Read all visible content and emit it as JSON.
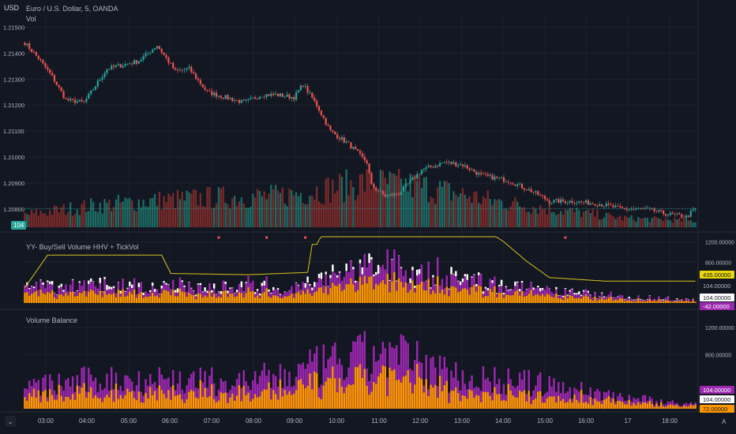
{
  "header": {
    "currency": "USD",
    "symbol_line": "Euro / U.S. Dollar, 5, OANDA",
    "vol_label": "Vol",
    "vol_badge": "104"
  },
  "colors": {
    "background": "#131722",
    "grid": "#1e222d",
    "up": "#26a69a",
    "down": "#ef5350",
    "vol_up": "#1d6b63",
    "vol_down": "#7a2a2a",
    "purple": "#9c27b0",
    "orange": "#ff9800",
    "white": "#ffffff",
    "hhv_line": "#d8c41a",
    "price_line": "#26a69a"
  },
  "chart_data": [
    {
      "type": "candlestick",
      "name": "price",
      "y_ticks": [
        "1.21500",
        "1.21400",
        "1.21300",
        "1.21200",
        "1.21100",
        "1.21000",
        "1.20900",
        "1.20800"
      ],
      "ylim": [
        1.2073,
        1.2155
      ],
      "x_ticks": [
        "03:00",
        "04:00",
        "05:00",
        "06:00",
        "07:00",
        "08:00",
        "09:00",
        "10:00",
        "11:00",
        "12:00",
        "13:00",
        "14:00",
        "15:00",
        "16:00",
        "17",
        "18:00"
      ],
      "price_anchors": [
        [
          0,
          1.2144
        ],
        [
          6,
          1.2138
        ],
        [
          12,
          1.2131
        ],
        [
          18,
          1.2122
        ],
        [
          26,
          1.2121
        ],
        [
          36,
          1.2134
        ],
        [
          50,
          1.2137
        ],
        [
          58,
          1.2143
        ],
        [
          66,
          1.2133
        ],
        [
          72,
          1.2134
        ],
        [
          80,
          1.2125
        ],
        [
          88,
          1.2123
        ],
        [
          96,
          1.2121
        ],
        [
          104,
          1.2124
        ],
        [
          110,
          1.2124
        ],
        [
          118,
          1.2123
        ],
        [
          122,
          1.2128
        ],
        [
          128,
          1.212
        ],
        [
          134,
          1.211
        ],
        [
          142,
          1.2105
        ],
        [
          150,
          1.2098
        ],
        [
          152,
          1.2089
        ],
        [
          158,
          1.2085
        ],
        [
          164,
          1.2086
        ],
        [
          174,
          1.2095
        ],
        [
          184,
          1.2098
        ],
        [
          192,
          1.2097
        ],
        [
          200,
          1.2093
        ],
        [
          212,
          1.2091
        ],
        [
          222,
          1.2087
        ],
        [
          230,
          1.2083
        ],
        [
          240,
          1.2083
        ],
        [
          252,
          1.2082
        ],
        [
          262,
          1.208
        ],
        [
          272,
          1.208
        ],
        [
          282,
          1.2078
        ],
        [
          290,
          1.2077
        ],
        [
          294,
          1.208
        ]
      ],
      "volume": {
        "ylim": [
          0,
          120
        ],
        "anchors": [
          [
            0,
            16
          ],
          [
            30,
            28
          ],
          [
            55,
            34
          ],
          [
            80,
            38
          ],
          [
            110,
            40
          ],
          [
            130,
            48
          ],
          [
            150,
            58
          ],
          [
            175,
            52
          ],
          [
            205,
            34
          ],
          [
            235,
            22
          ],
          [
            262,
            12
          ],
          [
            294,
            8
          ]
        ]
      }
    },
    {
      "type": "stacked-bar",
      "title": "YY- Buy/Sell Volume HHV + TickVol",
      "y_ticks": [
        "1200.00000",
        "800.00000"
      ],
      "ylim": [
        0,
        1300
      ],
      "value_badges": [
        "435.00000",
        "104.00000",
        "104.00000",
        "-42.00000"
      ],
      "hhv_steps": [
        [
          0,
          300
        ],
        [
          10,
          940
        ],
        [
          60,
          940
        ],
        [
          64,
          580
        ],
        [
          98,
          555
        ],
        [
          124,
          600
        ],
        [
          126,
          1150
        ],
        [
          128,
          1150
        ],
        [
          132,
          1500
        ],
        [
          200,
          1500
        ],
        [
          210,
          1200
        ],
        [
          220,
          820
        ],
        [
          230,
          500
        ],
        [
          254,
          430
        ],
        [
          294,
          430
        ]
      ],
      "total": {
        "anchors": [
          [
            0,
            290
          ],
          [
            30,
            370
          ],
          [
            60,
            300
          ],
          [
            90,
            340
          ],
          [
            120,
            300
          ],
          [
            130,
            450
          ],
          [
            145,
            650
          ],
          [
            160,
            720
          ],
          [
            180,
            560
          ],
          [
            200,
            410
          ],
          [
            230,
            230
          ],
          [
            262,
            130
          ],
          [
            294,
            60
          ]
        ]
      }
    },
    {
      "type": "stacked-bar",
      "title": "Volume Balance",
      "y_ticks": [
        "1200.00000",
        "800.00000"
      ],
      "ylim": [
        0,
        1400
      ],
      "value_badges": [
        "104.00000",
        "104.00000",
        "72.00000"
      ],
      "total": {
        "anchors": [
          [
            0,
            300
          ],
          [
            30,
            420
          ],
          [
            60,
            440
          ],
          [
            90,
            380
          ],
          [
            115,
            480
          ],
          [
            130,
            620
          ],
          [
            145,
            720
          ],
          [
            160,
            820
          ],
          [
            180,
            560
          ],
          [
            200,
            440
          ],
          [
            225,
            360
          ],
          [
            250,
            240
          ],
          [
            280,
            100
          ],
          [
            294,
            60
          ]
        ]
      }
    }
  ]
}
